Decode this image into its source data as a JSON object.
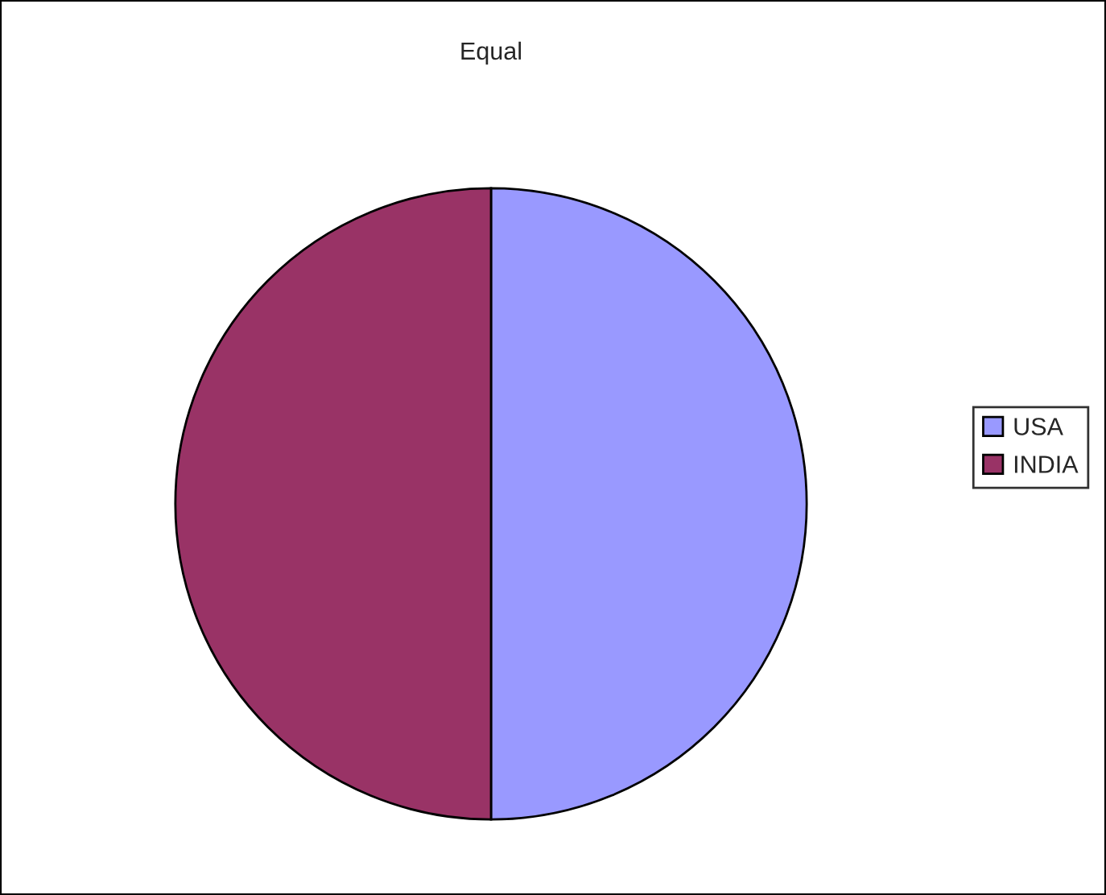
{
  "chart_data": {
    "type": "pie",
    "title": "Equal",
    "categories": [
      "USA",
      "INDIA"
    ],
    "values": [
      50,
      50
    ],
    "colors": [
      "#9999ff",
      "#993366"
    ],
    "legend": "right"
  }
}
